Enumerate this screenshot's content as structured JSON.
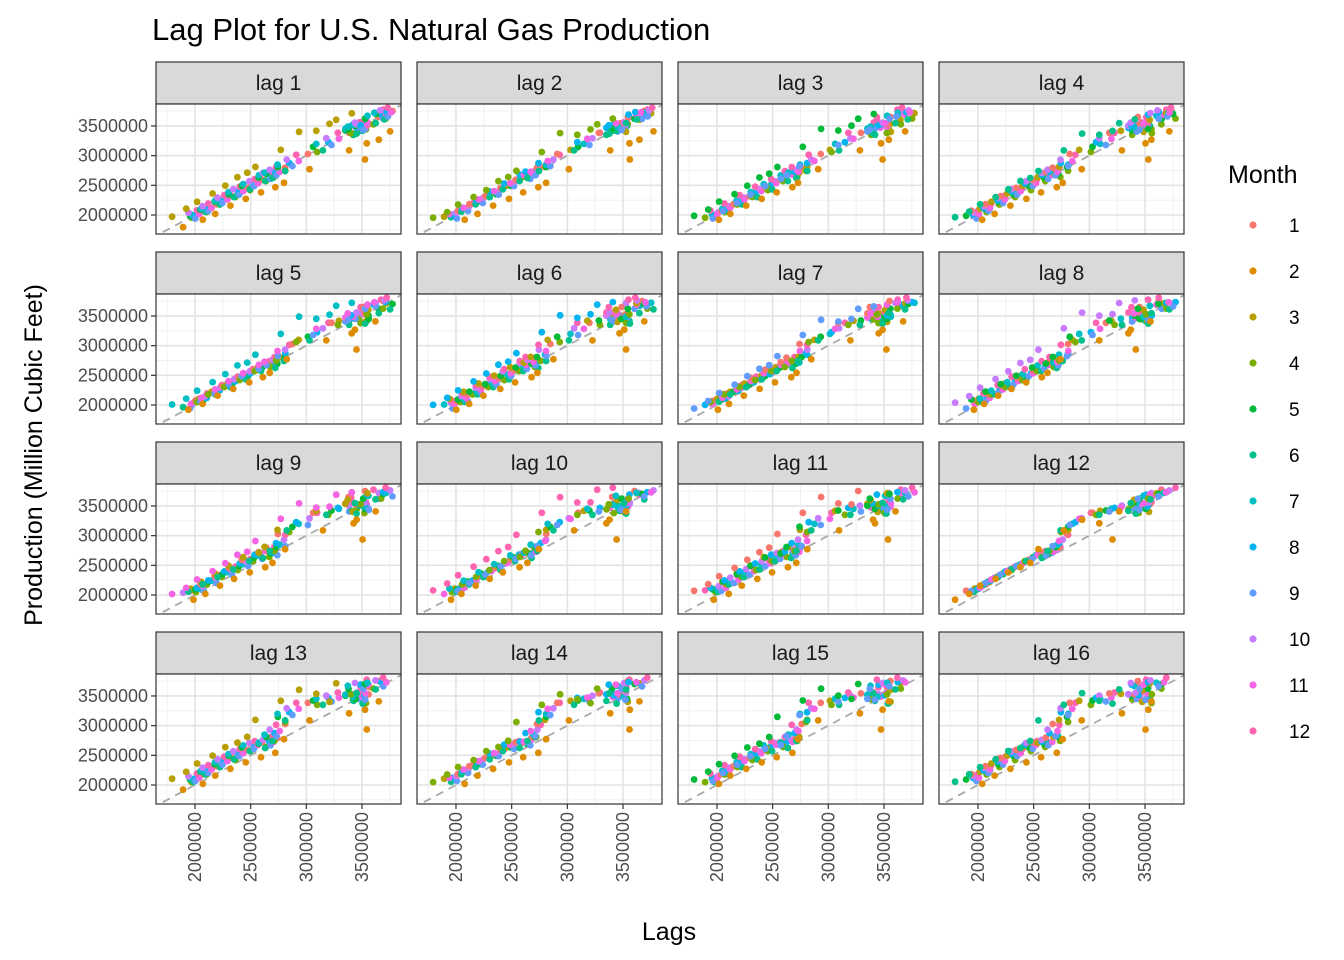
{
  "chart_data": {
    "type": "scatter",
    "title": "Lag Plot for U.S. Natural Gas Production",
    "xlabel": "Lags",
    "ylabel": "Production (Million Cubic Feet)",
    "facets": [
      "lag 1",
      "lag 2",
      "lag 3",
      "lag 4",
      "lag 5",
      "lag 6",
      "lag 7",
      "lag 8",
      "lag 9",
      "lag 10",
      "lag 11",
      "lag 12",
      "lag 13",
      "lag 14",
      "lag 15",
      "lag 16"
    ],
    "x_ticks": [
      2000000,
      2500000,
      3000000,
      3500000
    ],
    "y_ticks": [
      2000000,
      2500000,
      3000000,
      3500000
    ],
    "x_tick_labels": [
      "2000000",
      "2500000",
      "3000000",
      "3500000"
    ],
    "y_tick_labels": [
      "2000000",
      "2500000",
      "3000000",
      "3500000"
    ],
    "xlim": [
      1650000,
      3850000
    ],
    "ylim": [
      1680000,
      3870000
    ],
    "reference_line": "y = x",
    "grid": true,
    "legend": {
      "title": "Month",
      "position": "right",
      "entries": [
        {
          "label": "1",
          "color": "#F8766D"
        },
        {
          "label": "2",
          "color": "#DE8C00"
        },
        {
          "label": "3",
          "color": "#B79F00"
        },
        {
          "label": "4",
          "color": "#7CAE00"
        },
        {
          "label": "5",
          "color": "#00BA38"
        },
        {
          "label": "6",
          "color": "#00C08B"
        },
        {
          "label": "7",
          "color": "#00BFC4"
        },
        {
          "label": "8",
          "color": "#00B4F0"
        },
        {
          "label": "9",
          "color": "#619CFF"
        },
        {
          "label": "10",
          "color": "#C77CFF"
        },
        {
          "label": "11",
          "color": "#F564E3"
        },
        {
          "label": "12",
          "color": "#FF64B0"
        }
      ]
    },
    "series_years": 14,
    "monthly_production": [
      1893000,
      1795000,
      1971000,
      1955000,
      1987000,
      1963000,
      2008000,
      2003000,
      1941000,
      2038000,
      2017000,
      2078000,
      2070000,
      1921000,
      2106000,
      2049000,
      2093000,
      2055000,
      2108000,
      2119000,
      2068000,
      2149000,
      2120000,
      2193000,
      2182000,
      2019000,
      2223000,
      2177000,
      2225000,
      2181000,
      2241000,
      2246000,
      2203000,
      2291000,
      2262000,
      2333000,
      2318000,
      2158000,
      2362000,
      2303000,
      2351000,
      2301000,
      2384000,
      2398000,
      2343000,
      2435000,
      2402000,
      2476000,
      2456000,
      2272000,
      2495000,
      2420000,
      2492000,
      2433000,
      2521000,
      2531000,
      2487000,
      2567000,
      2536000,
      2604000,
      2593000,
      2381000,
      2637000,
      2571000,
      2631000,
      2573000,
      2667000,
      2679000,
      2610000,
      2708000,
      2677000,
      2739000,
      2721000,
      2469000,
      2712000,
      2641000,
      2696000,
      2624000,
      2714000,
      2731000,
      2671000,
      2761000,
      2728000,
      2809000,
      2799000,
      2543000,
      2811000,
      2745000,
      2809000,
      2741000,
      2847000,
      2875000,
      2824000,
      2931000,
      2909000,
      3014000,
      3028000,
      2771000,
      3097000,
      3061000,
      3149000,
      3089000,
      3198000,
      3226000,
      3179000,
      3292000,
      3283000,
      3385000,
      3384000,
      3089000,
      3419000,
      3351000,
      3424000,
      3351000,
      3452000,
      3468000,
      3407000,
      3504000,
      3473000,
      3558000,
      3543000,
      3208000,
      3536000,
      3442000,
      3505000,
      3417000,
      3521000,
      3528000,
      3450000,
      3529000,
      3487000,
      3561000,
      3527000,
      2935000,
      3402000,
      3379000,
      3451000,
      3372000,
      3487000,
      3511000,
      3436000,
      3557000,
      3543000,
      3647000,
      3651000,
      3268000,
      3603000,
      3528000,
      3623000,
      3549000,
      3671000,
      3691000,
      3620000,
      3718000,
      3689000,
      3774000,
      3752000,
      3408000,
      3713000,
      3624000,
      3701000,
      3610000,
      3722000,
      3733000,
      3661000,
      3762000,
      3731000,
      3808000
    ]
  }
}
